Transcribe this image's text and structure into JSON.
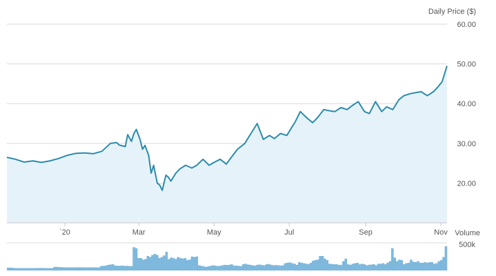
{
  "chart_data": [
    {
      "type": "line",
      "ylabel": "Daily Price ($)",
      "ylim": [
        10,
        60
      ],
      "y_ticks": [
        "60.00",
        "50.00",
        "40.00",
        "30.00",
        "20.00"
      ],
      "x_ticks": [
        "`20",
        "Mar",
        "May",
        "Jul",
        "Sep",
        "Nov"
      ],
      "grid": true,
      "line_color": "#2b8aac",
      "fill_color": "#e6f2fa",
      "series": [
        {
          "x": [
            "2019-11-15",
            "2019-11-22",
            "2019-11-29",
            "2019-12-06",
            "2019-12-13",
            "2019-12-20",
            "2019-12-27",
            "2020-01-03",
            "2020-01-10",
            "2020-01-17",
            "2020-01-24",
            "2020-01-31",
            "2020-02-07",
            "2020-02-12",
            "2020-02-14",
            "2020-02-19",
            "2020-02-21",
            "2020-02-24",
            "2020-02-26",
            "2020-02-28",
            "2020-03-02",
            "2020-03-04",
            "2020-03-06",
            "2020-03-09",
            "2020-03-11",
            "2020-03-13",
            "2020-03-16",
            "2020-03-18",
            "2020-03-20",
            "2020-03-23",
            "2020-03-25",
            "2020-03-27",
            "2020-03-31",
            "2020-04-03",
            "2020-04-08",
            "2020-04-13",
            "2020-04-17",
            "2020-04-22",
            "2020-04-27",
            "2020-05-01",
            "2020-05-06",
            "2020-05-11",
            "2020-05-15",
            "2020-05-20",
            "2020-05-26",
            "2020-06-01",
            "2020-06-05",
            "2020-06-10",
            "2020-06-15",
            "2020-06-19",
            "2020-06-24",
            "2020-06-29",
            "2020-07-06",
            "2020-07-10",
            "2020-07-15",
            "2020-07-20",
            "2020-07-24",
            "2020-07-29",
            "2020-08-03",
            "2020-08-07",
            "2020-08-12",
            "2020-08-17",
            "2020-08-21",
            "2020-08-26",
            "2020-08-31",
            "2020-09-04",
            "2020-09-09",
            "2020-09-14",
            "2020-09-18",
            "2020-09-23",
            "2020-09-28",
            "2020-10-02",
            "2020-10-07",
            "2020-10-12",
            "2020-10-16",
            "2020-10-21",
            "2020-10-26",
            "2020-10-29",
            "2020-11-02",
            "2020-11-04",
            "2020-11-06"
          ],
          "y": [
            26.5,
            26.0,
            25.3,
            25.6,
            25.2,
            25.6,
            26.2,
            27.0,
            27.5,
            27.6,
            27.4,
            28.0,
            30.0,
            30.2,
            29.6,
            29.2,
            32.2,
            30.5,
            32.5,
            33.5,
            31.0,
            28.5,
            29.5,
            27.0,
            22.5,
            24.5,
            20.0,
            19.5,
            18.2,
            22.0,
            21.5,
            20.5,
            22.5,
            23.5,
            24.5,
            23.8,
            24.5,
            26.0,
            24.5,
            25.2,
            26.0,
            24.8,
            26.5,
            28.5,
            30.0,
            33.0,
            35.0,
            31.0,
            32.0,
            31.2,
            32.5,
            32.0,
            35.5,
            38.0,
            36.5,
            35.2,
            36.5,
            38.5,
            38.2,
            38.0,
            39.0,
            38.5,
            39.5,
            40.5,
            38.0,
            37.5,
            40.5,
            38.0,
            39.2,
            38.5,
            41.0,
            42.0,
            42.5,
            42.8,
            43.0,
            42.0,
            43.0,
            44.0,
            45.5,
            47.5,
            49.5
          ]
        }
      ]
    },
    {
      "type": "bar",
      "ylabel": "Volume",
      "y_ticks": [
        "500k"
      ],
      "ylim": [
        0,
        600
      ],
      "color": "#7eb8dc",
      "values": [
        55,
        55,
        52,
        45,
        45,
        45,
        45,
        45,
        45,
        45,
        45,
        45,
        45,
        48,
        48,
        48,
        45,
        45,
        45,
        45,
        70,
        70,
        65,
        65,
        60,
        60,
        60,
        60,
        60,
        60,
        62,
        62,
        60,
        60,
        60,
        60,
        60,
        60,
        60,
        60,
        85,
        90,
        95,
        110,
        115,
        120,
        95,
        92,
        90,
        95,
        90,
        90,
        85,
        85,
        450,
        430,
        240,
        240,
        210,
        220,
        280,
        260,
        300,
        320,
        300,
        240,
        260,
        290,
        360,
        220,
        250,
        240,
        220,
        260,
        240,
        230,
        240,
        200,
        210,
        270,
        260,
        270,
        100,
        90,
        80,
        70,
        80,
        90,
        100,
        95,
        85,
        90,
        100,
        110,
        105,
        110,
        120,
        95,
        95,
        90,
        85,
        120,
        130,
        115,
        110,
        100,
        95,
        110,
        115,
        105,
        100,
        120,
        125,
        110,
        100,
        105,
        100,
        95,
        100,
        140,
        150,
        155,
        140,
        130,
        110,
        160,
        150,
        140,
        130,
        125,
        150,
        190,
        200,
        210,
        280,
        280,
        230,
        200,
        130,
        125,
        120,
        120,
        110,
        110,
        180,
        230,
        120,
        110,
        130,
        140,
        150,
        120,
        130,
        120,
        100,
        110,
        115,
        120,
        100,
        130,
        130,
        140,
        120,
        150,
        180,
        430,
        250,
        180,
        210,
        200,
        120,
        140,
        150,
        210,
        170,
        160,
        180,
        150,
        150,
        160,
        150,
        160,
        160,
        130,
        140,
        180,
        200,
        260,
        470
      ]
    }
  ]
}
